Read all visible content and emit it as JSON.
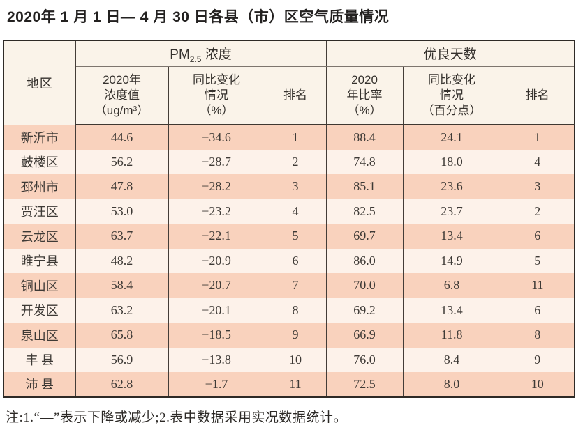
{
  "page": {
    "title": "2020年 1 月 1 日— 4 月 30 日各县（市）区空气质量情况",
    "note": "注:1.“—”表示下降或减少;2.表中数据采用实况数据统计。"
  },
  "colors": {
    "row_salmon": "#f9d2bd",
    "row_light": "#fdf2ea",
    "header_cream": "#faf3e9",
    "border_dark": "#2e2a26",
    "text": "#3e3a36"
  },
  "table": {
    "header": {
      "region_label": "地区",
      "pm25_group": {
        "prefix": "PM",
        "subscript": "2.5",
        "suffix": " 浓度"
      },
      "good_days_group_label": "优良天数",
      "sub_columns": {
        "pm25_value": "2020年\n浓度值\n（ug/m³）",
        "pm25_change": "同比变化\n情况\n（%）",
        "pm25_rank": "排名",
        "good_days_ratio": "2020\n年比率\n（%）",
        "good_days_change": "同比变化\n情况\n（百分点）",
        "good_days_rank": "排名"
      }
    },
    "rows": [
      {
        "region": "新沂市",
        "pm25_value": "44.6",
        "pm25_change": "−34.6",
        "pm25_rank": "1",
        "good_days_ratio": "88.4",
        "good_days_change": "24.1",
        "good_days_rank": "1"
      },
      {
        "region": "鼓楼区",
        "pm25_value": "56.2",
        "pm25_change": "−28.7",
        "pm25_rank": "2",
        "good_days_ratio": "74.8",
        "good_days_change": "18.0",
        "good_days_rank": "4"
      },
      {
        "region": "邳州市",
        "pm25_value": "47.8",
        "pm25_change": "−28.2",
        "pm25_rank": "3",
        "good_days_ratio": "85.1",
        "good_days_change": "23.6",
        "good_days_rank": "3"
      },
      {
        "region": "贾汪区",
        "pm25_value": "53.0",
        "pm25_change": "−23.2",
        "pm25_rank": "4",
        "good_days_ratio": "82.5",
        "good_days_change": "23.7",
        "good_days_rank": "2"
      },
      {
        "region": "云龙区",
        "pm25_value": "63.7",
        "pm25_change": "−22.1",
        "pm25_rank": "5",
        "good_days_ratio": "69.7",
        "good_days_change": "13.4",
        "good_days_rank": "6"
      },
      {
        "region": "睢宁县",
        "pm25_value": "48.2",
        "pm25_change": "−20.9",
        "pm25_rank": "6",
        "good_days_ratio": "86.0",
        "good_days_change": "14.9",
        "good_days_rank": "5"
      },
      {
        "region": "铜山区",
        "pm25_value": "58.4",
        "pm25_change": "−20.7",
        "pm25_rank": "7",
        "good_days_ratio": "70.0",
        "good_days_change": "6.8",
        "good_days_rank": "11"
      },
      {
        "region": "开发区",
        "pm25_value": "63.2",
        "pm25_change": "−20.1",
        "pm25_rank": "8",
        "good_days_ratio": "69.2",
        "good_days_change": "13.4",
        "good_days_rank": "6"
      },
      {
        "region": "泉山区",
        "pm25_value": "65.8",
        "pm25_change": "−18.5",
        "pm25_rank": "9",
        "good_days_ratio": "66.9",
        "good_days_change": "11.8",
        "good_days_rank": "8"
      },
      {
        "region": "丰 县",
        "pm25_value": "56.9",
        "pm25_change": "−13.8",
        "pm25_rank": "10",
        "good_days_ratio": "76.0",
        "good_days_change": "8.4",
        "good_days_rank": "9"
      },
      {
        "region": "沛 县",
        "pm25_value": "62.8",
        "pm25_change": "−1.7",
        "pm25_rank": "11",
        "good_days_ratio": "72.5",
        "good_days_change": "8.0",
        "good_days_rank": "10"
      }
    ]
  }
}
